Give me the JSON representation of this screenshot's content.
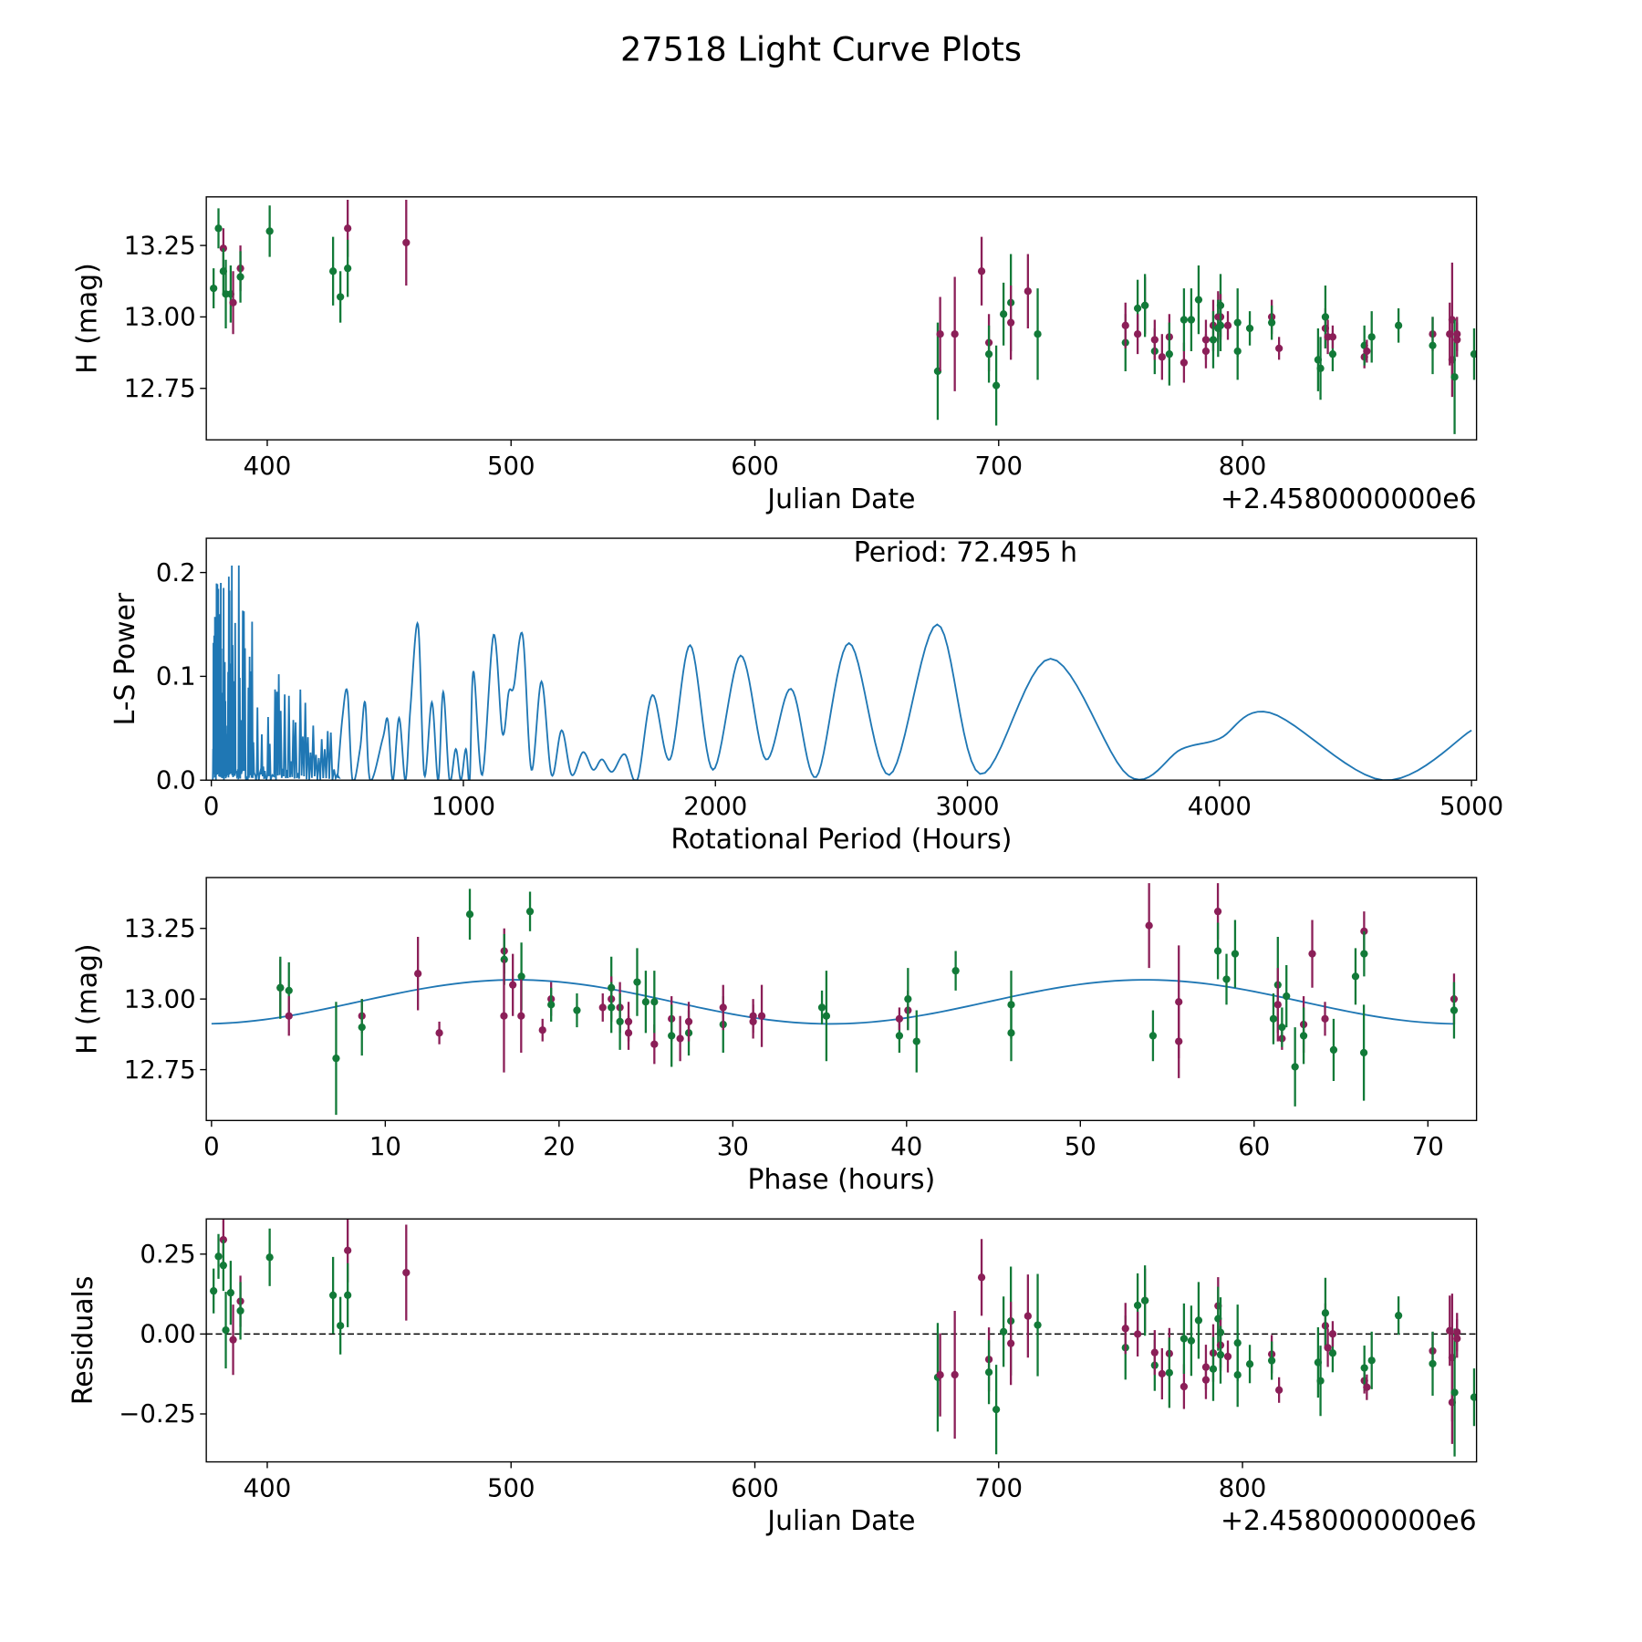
{
  "title": "27518 Light Curve Plots",
  "colors": {
    "g": "#127a38",
    "p": "#8b1f58",
    "curve": "#1f77b4",
    "axis": "#000000"
  },
  "chart_data": [
    {
      "id": "lightcurve",
      "type": "scatter",
      "xlabel": "Julian Date",
      "ylabel": "H (mag)",
      "offset_label": "+2.4580000000e6",
      "xlim": [
        375,
        896
      ],
      "ylim": [
        12.57,
        13.42
      ],
      "xticks": [
        {
          "v": 400,
          "label": "400"
        },
        {
          "v": 500,
          "label": "500"
        },
        {
          "v": 600,
          "label": "600"
        },
        {
          "v": 700,
          "label": "700"
        },
        {
          "v": 800,
          "label": "800"
        }
      ],
      "yticks": [
        {
          "v": 12.75,
          "label": "12.75"
        },
        {
          "v": 13.0,
          "label": "13.00"
        },
        {
          "v": 13.25,
          "label": "13.25"
        }
      ],
      "points": [
        [
          378,
          13.1,
          0.07,
          "g"
        ],
        [
          380,
          13.31,
          0.07,
          "g"
        ],
        [
          382,
          13.24,
          0.07,
          "p"
        ],
        [
          382,
          13.16,
          0.08,
          "g"
        ],
        [
          383,
          13.08,
          0.12,
          "g"
        ],
        [
          385,
          13.08,
          0.1,
          "g"
        ],
        [
          386,
          13.05,
          0.11,
          "p"
        ],
        [
          389,
          13.17,
          0.08,
          "p"
        ],
        [
          389,
          13.14,
          0.09,
          "g"
        ],
        [
          401,
          13.3,
          0.09,
          "g"
        ],
        [
          427,
          13.16,
          0.12,
          "g"
        ],
        [
          430,
          13.07,
          0.09,
          "g"
        ],
        [
          433,
          13.31,
          0.1,
          "p"
        ],
        [
          433,
          13.17,
          0.1,
          "g"
        ],
        [
          457,
          13.26,
          0.15,
          "p"
        ],
        [
          675,
          12.81,
          0.17,
          "g"
        ],
        [
          676,
          12.94,
          0.13,
          "p"
        ],
        [
          682,
          12.94,
          0.2,
          "p"
        ],
        [
          693,
          13.16,
          0.12,
          "p"
        ],
        [
          696,
          12.91,
          0.1,
          "p"
        ],
        [
          696,
          12.87,
          0.1,
          "g"
        ],
        [
          699,
          12.76,
          0.14,
          "g"
        ],
        [
          702,
          13.01,
          0.11,
          "g"
        ],
        [
          705,
          13.05,
          0.17,
          "g"
        ],
        [
          705,
          12.98,
          0.13,
          "p"
        ],
        [
          712,
          13.09,
          0.13,
          "p"
        ],
        [
          716,
          12.94,
          0.16,
          "g"
        ],
        [
          752,
          12.91,
          0.1,
          "g"
        ],
        [
          752,
          12.97,
          0.08,
          "p"
        ],
        [
          757,
          13.03,
          0.1,
          "g"
        ],
        [
          757,
          12.94,
          0.07,
          "p"
        ],
        [
          760,
          13.04,
          0.1,
          "p"
        ],
        [
          760,
          13.04,
          0.11,
          "g"
        ],
        [
          764,
          12.88,
          0.08,
          "g"
        ],
        [
          764,
          12.92,
          0.07,
          "p"
        ],
        [
          767,
          12.86,
          0.08,
          "p"
        ],
        [
          770,
          12.93,
          0.08,
          "p"
        ],
        [
          770,
          12.87,
          0.11,
          "g"
        ],
        [
          776,
          12.84,
          0.07,
          "p"
        ],
        [
          776,
          12.99,
          0.11,
          "g"
        ],
        [
          779,
          12.99,
          0.11,
          "g"
        ],
        [
          782,
          13.06,
          0.12,
          "g"
        ],
        [
          785,
          12.92,
          0.07,
          "p"
        ],
        [
          785,
          12.88,
          0.06,
          "p"
        ],
        [
          788,
          12.97,
          0.09,
          "p"
        ],
        [
          788,
          12.92,
          0.1,
          "g"
        ],
        [
          790,
          13.0,
          0.09,
          "p"
        ],
        [
          790,
          12.96,
          0.1,
          "g"
        ],
        [
          791,
          13.04,
          0.11,
          "g"
        ],
        [
          791,
          13.0,
          0.08,
          "p"
        ],
        [
          791,
          12.97,
          0.09,
          "g"
        ],
        [
          794,
          12.97,
          0.05,
          "p"
        ],
        [
          798,
          12.98,
          0.12,
          "g"
        ],
        [
          798,
          12.88,
          0.1,
          "g"
        ],
        [
          803,
          12.96,
          0.06,
          "g"
        ],
        [
          812,
          13.0,
          0.06,
          "p"
        ],
        [
          812,
          12.98,
          0.06,
          "g"
        ],
        [
          815,
          12.89,
          0.04,
          "p"
        ],
        [
          831,
          12.85,
          0.11,
          "g"
        ],
        [
          832,
          12.82,
          0.11,
          "g"
        ],
        [
          834,
          12.96,
          0.07,
          "p"
        ],
        [
          834,
          13.0,
          0.11,
          "g"
        ],
        [
          835,
          12.93,
          0.06,
          "p"
        ],
        [
          837,
          12.87,
          0.06,
          "g"
        ],
        [
          837,
          12.93,
          0.04,
          "p"
        ],
        [
          850,
          12.86,
          0.04,
          "p"
        ],
        [
          850,
          12.9,
          0.07,
          "g"
        ],
        [
          851,
          12.88,
          0.04,
          "p"
        ],
        [
          853,
          12.93,
          0.09,
          "g"
        ],
        [
          864,
          12.97,
          0.06,
          "g"
        ],
        [
          878,
          12.94,
          0.06,
          "p"
        ],
        [
          878,
          12.9,
          0.1,
          "g"
        ],
        [
          885,
          12.94,
          0.11,
          "p"
        ],
        [
          886,
          12.99,
          0.2,
          "p"
        ],
        [
          886,
          12.85,
          0.13,
          "p"
        ],
        [
          887,
          12.79,
          0.2,
          "g"
        ],
        [
          888,
          12.94,
          0.06,
          "p"
        ],
        [
          888,
          12.92,
          0.06,
          "p"
        ],
        [
          895,
          12.87,
          0.09,
          "g"
        ]
      ]
    },
    {
      "id": "periodogram",
      "type": "line",
      "xlabel": "Rotational Period (Hours)",
      "ylabel": "L-S Power",
      "annotation": "Period: 72.495 h",
      "xlim": [
        -20,
        5020
      ],
      "ylim": [
        0,
        0.233
      ],
      "xticks": [
        {
          "v": 0,
          "label": "0"
        },
        {
          "v": 1000,
          "label": "1000"
        },
        {
          "v": 2000,
          "label": "2000"
        },
        {
          "v": 3000,
          "label": "3000"
        },
        {
          "v": 4000,
          "label": "4000"
        },
        {
          "v": 5000,
          "label": "5000"
        }
      ],
      "yticks": [
        {
          "v": 0,
          "label": "0.0"
        },
        {
          "v": 0.1,
          "label": "0.1"
        },
        {
          "v": 0.2,
          "label": "0.2"
        }
      ],
      "dense_envelope": [
        [
          5,
          0.22
        ],
        [
          40,
          0.21
        ],
        [
          75,
          0.233
        ],
        [
          120,
          0.2
        ],
        [
          160,
          0.19
        ],
        [
          200,
          0.11
        ],
        [
          300,
          0.1
        ],
        [
          400,
          0.08
        ],
        [
          500,
          0.07
        ]
      ],
      "points": [
        [
          500,
          0.0
        ],
        [
          520,
          0.06
        ],
        [
          540,
          0.085
        ],
        [
          560,
          0.0
        ],
        [
          590,
          0.03
        ],
        [
          610,
          0.075
        ],
        [
          630,
          0.0
        ],
        [
          680,
          0.04
        ],
        [
          700,
          0.058
        ],
        [
          720,
          0.0
        ],
        [
          745,
          0.06
        ],
        [
          770,
          0.0
        ],
        [
          790,
          0.07
        ],
        [
          820,
          0.15
        ],
        [
          845,
          0.005
        ],
        [
          875,
          0.075
        ],
        [
          900,
          0.0
        ],
        [
          920,
          0.085
        ],
        [
          945,
          0.0
        ],
        [
          970,
          0.03
        ],
        [
          990,
          0.0
        ],
        [
          1010,
          0.03
        ],
        [
          1025,
          0.0
        ],
        [
          1040,
          0.105
        ],
        [
          1075,
          0.005
        ],
        [
          1120,
          0.14
        ],
        [
          1155,
          0.045
        ],
        [
          1180,
          0.085
        ],
        [
          1200,
          0.09
        ],
        [
          1235,
          0.14
        ],
        [
          1270,
          0.01
        ],
        [
          1310,
          0.095
        ],
        [
          1350,
          0.005
        ],
        [
          1390,
          0.048
        ],
        [
          1430,
          0.005
        ],
        [
          1475,
          0.027
        ],
        [
          1515,
          0.01
        ],
        [
          1550,
          0.02
        ],
        [
          1590,
          0.008
        ],
        [
          1640,
          0.025
        ],
        [
          1690,
          0.0
        ],
        [
          1750,
          0.082
        ],
        [
          1820,
          0.02
        ],
        [
          1900,
          0.13
        ],
        [
          1990,
          0.01
        ],
        [
          2100,
          0.12
        ],
        [
          2200,
          0.02
        ],
        [
          2300,
          0.088
        ],
        [
          2400,
          0.003
        ],
        [
          2530,
          0.132
        ],
        [
          2690,
          0.005
        ],
        [
          2880,
          0.15
        ],
        [
          3050,
          0.006
        ],
        [
          3330,
          0.117
        ],
        [
          3640,
          0.004
        ],
        [
          3850,
          0.03
        ],
        [
          4000,
          0.04
        ],
        [
          4200,
          0.065
        ],
        [
          4650,
          0.0
        ],
        [
          5000,
          0.048
        ]
      ]
    },
    {
      "id": "phased",
      "type": "scatter",
      "xlabel": "Phase (hours)",
      "ylabel": "H (mag)",
      "period_hours": 72.495,
      "phase_shift_hours": 32.7,
      "model": {
        "mean": 12.99,
        "amplitude": 0.078,
        "peak_phase": 17.5,
        "harmonic": 2
      },
      "xlim": [
        -0.3,
        72.8
      ],
      "ylim": [
        12.57,
        13.43
      ],
      "xticks": [
        {
          "v": 0,
          "label": "0"
        },
        {
          "v": 10,
          "label": "10"
        },
        {
          "v": 20,
          "label": "20"
        },
        {
          "v": 30,
          "label": "30"
        },
        {
          "v": 40,
          "label": "40"
        },
        {
          "v": 50,
          "label": "50"
        },
        {
          "v": 60,
          "label": "60"
        },
        {
          "v": 70,
          "label": "70"
        }
      ],
      "yticks": [
        {
          "v": 12.75,
          "label": "12.75"
        },
        {
          "v": 13.0,
          "label": "13.00"
        },
        {
          "v": 13.25,
          "label": "13.25"
        }
      ]
    },
    {
      "id": "residuals",
      "type": "scatter",
      "xlabel": "Julian Date",
      "ylabel": "Residuals",
      "offset_label": "+2.4580000000e6",
      "xlim": [
        375,
        896
      ],
      "ylim": [
        -0.4,
        0.36
      ],
      "xticks": [
        {
          "v": 400,
          "label": "400"
        },
        {
          "v": 500,
          "label": "500"
        },
        {
          "v": 600,
          "label": "600"
        },
        {
          "v": 700,
          "label": "700"
        },
        {
          "v": 800,
          "label": "800"
        }
      ],
      "yticks": [
        {
          "v": -0.25,
          "label": "−0.25"
        },
        {
          "v": 0,
          "label": "0.00"
        },
        {
          "v": 0.25,
          "label": "0.25"
        }
      ]
    }
  ]
}
